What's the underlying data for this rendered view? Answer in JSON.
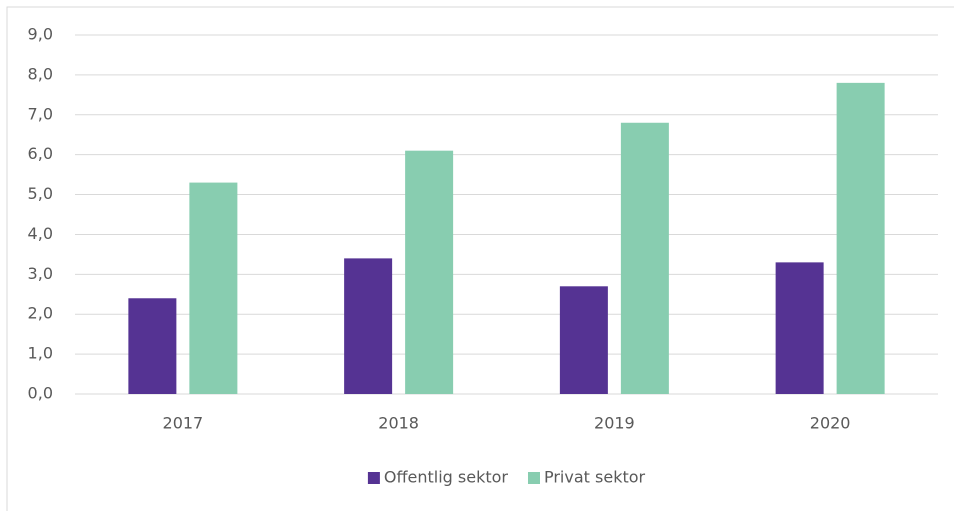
{
  "chart_data": {
    "type": "bar",
    "categories": [
      "2017",
      "2018",
      "2019",
      "2020"
    ],
    "series": [
      {
        "name": "Offentlig sektor",
        "color": "#553393",
        "values": [
          2.4,
          3.4,
          2.7,
          3.3
        ]
      },
      {
        "name": "Privat sektor",
        "color": "#88cdb0",
        "values": [
          5.3,
          6.1,
          6.8,
          7.8
        ]
      }
    ],
    "ylim": [
      0,
      9
    ],
    "yticks": [
      {
        "value": 0,
        "label": "0,0"
      },
      {
        "value": 1,
        "label": "1,0"
      },
      {
        "value": 2,
        "label": "2,0"
      },
      {
        "value": 3,
        "label": "3,0"
      },
      {
        "value": 4,
        "label": "4,0"
      },
      {
        "value": 5,
        "label": "5,0"
      },
      {
        "value": 6,
        "label": "6,0"
      },
      {
        "value": 7,
        "label": "7,0"
      },
      {
        "value": 8,
        "label": "8,0"
      },
      {
        "value": 9,
        "label": "9,0"
      }
    ],
    "grid": true,
    "legend": "bottom"
  }
}
